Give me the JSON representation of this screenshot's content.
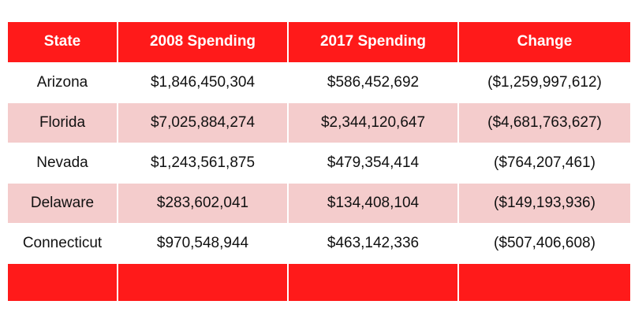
{
  "table": {
    "headers": [
      "State",
      "2008 Spending",
      "2017 Spending",
      "Change"
    ],
    "rows": [
      [
        "Arizona",
        "$1,846,450,304",
        "$586,452,692",
        "($1,259,997,612)"
      ],
      [
        "Florida",
        "$7,025,884,274",
        "$2,344,120,647",
        "($4,681,763,627)"
      ],
      [
        "Nevada",
        "$1,243,561,875",
        "$479,354,414",
        "($764,207,461)"
      ],
      [
        "Delaware",
        "$283,602,041",
        "$134,408,104",
        "($149,193,936)"
      ],
      [
        "Connecticut",
        "$970,548,944",
        "$463,142,336",
        "($507,406,608)"
      ]
    ]
  },
  "colors": {
    "header_bg": "#ff1a1a",
    "header_text": "#ffffff",
    "stripe": "#f4cccc",
    "footer_bg": "#ff1a1a"
  }
}
